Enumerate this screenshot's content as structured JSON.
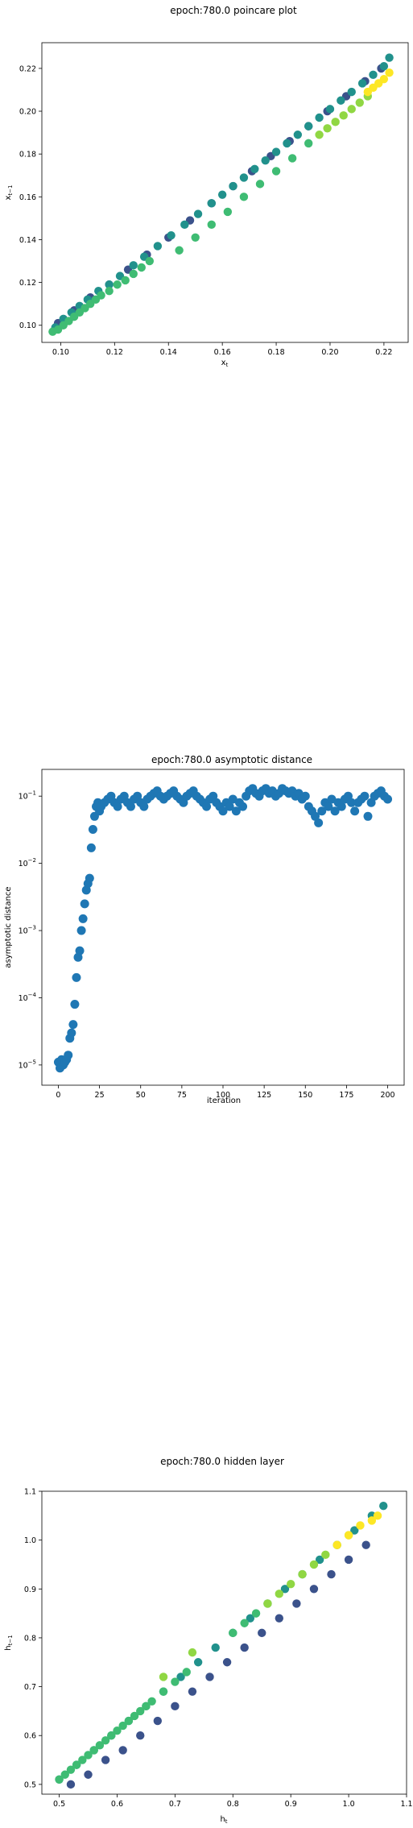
{
  "charts": {
    "poincare": {
      "title": "epoch:780.0 poincare plot",
      "xlabel": "x",
      "xsub": "t",
      "ylabel": "x",
      "ysub": "t−1"
    },
    "distance": {
      "title": "epoch:780.0 asymptotic distance",
      "xlabel": "iteration",
      "ylabel": "asymptotic distance"
    },
    "hidden": {
      "title": "epoch:780.0 hidden layer",
      "xlabel": "h",
      "xsub": "t",
      "ylabel": "h",
      "ysub": "t−1"
    }
  },
  "chart_data": [
    {
      "type": "scatter",
      "title": "epoch:780.0 poincare plot",
      "xlabel": "x_t",
      "ylabel": "x_{t-1}",
      "xlim": [
        0.093,
        0.229
      ],
      "ylim": [
        0.092,
        0.232
      ],
      "xticks": [
        0.1,
        0.12,
        0.14,
        0.16,
        0.18,
        0.2,
        0.22
      ],
      "yticks": [
        0.1,
        0.12,
        0.14,
        0.16,
        0.18,
        0.2,
        0.22
      ],
      "tick_labels_x": [
        "0.10",
        "0.12",
        "0.14",
        "0.16",
        "0.18",
        "0.20",
        "0.22"
      ],
      "tick_labels_y": [
        "0.10",
        "0.12",
        "0.14",
        "0.16",
        "0.18",
        "0.20",
        "0.22"
      ],
      "colormap": [
        "#440154",
        "#3b528b",
        "#21918c",
        "#5ec962",
        "#fde725"
      ],
      "series": [
        {
          "color": "#3b528b",
          "x": [
            0.099,
            0.105,
            0.111,
            0.118,
            0.125,
            0.132,
            0.14,
            0.148,
            0.156,
            0.164,
            0.171,
            0.178,
            0.185,
            0.192,
            0.199,
            0.206,
            0.213,
            0.219
          ],
          "y": [
            0.101,
            0.107,
            0.113,
            0.119,
            0.126,
            0.133,
            0.141,
            0.149,
            0.157,
            0.165,
            0.172,
            0.179,
            0.186,
            0.193,
            0.2,
            0.207,
            0.214,
            0.22
          ]
        },
        {
          "color": "#21918c",
          "x": [
            0.098,
            0.101,
            0.104,
            0.107,
            0.11,
            0.114,
            0.118,
            0.122,
            0.127,
            0.131,
            0.136,
            0.141,
            0.146,
            0.151,
            0.156,
            0.16,
            0.164,
            0.168,
            0.172,
            0.176,
            0.18,
            0.184,
            0.188,
            0.192,
            0.196,
            0.2,
            0.204,
            0.208,
            0.212,
            0.216,
            0.22,
            0.222
          ],
          "y": [
            0.099,
            0.103,
            0.106,
            0.109,
            0.112,
            0.116,
            0.119,
            0.123,
            0.128,
            0.132,
            0.137,
            0.142,
            0.147,
            0.152,
            0.157,
            0.161,
            0.165,
            0.169,
            0.173,
            0.177,
            0.181,
            0.185,
            0.189,
            0.193,
            0.197,
            0.201,
            0.205,
            0.209,
            0.213,
            0.217,
            0.221,
            0.225
          ]
        },
        {
          "color": "#3fbc73",
          "x": [
            0.097,
            0.099,
            0.101,
            0.103,
            0.105,
            0.107,
            0.109,
            0.111,
            0.113,
            0.115,
            0.118,
            0.121,
            0.124,
            0.127,
            0.13,
            0.133,
            0.144,
            0.15,
            0.156,
            0.162,
            0.168,
            0.174,
            0.18,
            0.186,
            0.192
          ],
          "y": [
            0.097,
            0.098,
            0.1,
            0.102,
            0.104,
            0.106,
            0.108,
            0.11,
            0.112,
            0.114,
            0.116,
            0.119,
            0.121,
            0.124,
            0.127,
            0.13,
            0.135,
            0.141,
            0.147,
            0.153,
            0.16,
            0.166,
            0.172,
            0.178,
            0.185
          ]
        },
        {
          "color": "#90d743",
          "x": [
            0.196,
            0.199,
            0.202,
            0.205,
            0.208,
            0.211,
            0.214
          ],
          "y": [
            0.189,
            0.192,
            0.195,
            0.198,
            0.201,
            0.204,
            0.207
          ]
        },
        {
          "color": "#fde725",
          "x": [
            0.214,
            0.216,
            0.218,
            0.22,
            0.222
          ],
          "y": [
            0.209,
            0.211,
            0.213,
            0.215,
            0.218
          ]
        }
      ]
    },
    {
      "type": "scatter",
      "title": "epoch:780.0 asymptotic distance",
      "xlabel": "iteration",
      "ylabel": "asymptotic distance",
      "yscale": "log",
      "xlim": [
        -10,
        210
      ],
      "ylim": [
        5e-06,
        0.25
      ],
      "xticks": [
        0,
        25,
        50,
        75,
        100,
        125,
        150,
        175,
        200
      ],
      "tick_labels_x": [
        "0",
        "25",
        "50",
        "75",
        "100",
        "125",
        "150",
        "175",
        "200"
      ],
      "yticks": [
        1e-05,
        0.0001,
        0.001,
        0.01,
        0.1
      ],
      "tick_labels_y": [
        {
          "base": "10",
          "exp": "−5"
        },
        {
          "base": "10",
          "exp": "−4"
        },
        {
          "base": "10",
          "exp": "−3"
        },
        {
          "base": "10",
          "exp": "−2"
        },
        {
          "base": "10",
          "exp": "−1"
        }
      ],
      "color": "#1f77b4",
      "x": [
        0,
        1,
        2,
        3,
        4,
        5,
        6,
        7,
        8,
        9,
        10,
        11,
        12,
        13,
        14,
        15,
        16,
        17,
        18,
        19,
        20,
        21,
        22,
        23,
        24,
        25,
        26,
        28,
        30,
        32,
        34,
        36,
        38,
        40,
        42,
        44,
        46,
        48,
        50,
        52,
        54,
        56,
        58,
        60,
        62,
        64,
        66,
        68,
        70,
        72,
        74,
        76,
        78,
        80,
        82,
        84,
        86,
        88,
        90,
        92,
        94,
        96,
        98,
        100,
        102,
        104,
        106,
        108,
        110,
        112,
        114,
        116,
        118,
        120,
        122,
        124,
        126,
        128,
        130,
        132,
        134,
        136,
        138,
        140,
        142,
        144,
        146,
        148,
        150,
        152,
        154,
        156,
        158,
        160,
        162,
        164,
        166,
        168,
        170,
        172,
        174,
        176,
        178,
        180,
        182,
        184,
        186,
        188,
        190,
        192,
        194,
        196,
        198,
        200
      ],
      "y": [
        1.1e-05,
        9e-06,
        1.2e-05,
        1e-05,
        1.1e-05,
        1.2e-05,
        1.4e-05,
        2.5e-05,
        3e-05,
        4e-05,
        8e-05,
        0.0002,
        0.0004,
        0.0005,
        0.001,
        0.0015,
        0.0025,
        0.004,
        0.005,
        0.006,
        0.017,
        0.032,
        0.05,
        0.07,
        0.08,
        0.06,
        0.07,
        0.08,
        0.09,
        0.1,
        0.08,
        0.07,
        0.09,
        0.1,
        0.08,
        0.07,
        0.09,
        0.1,
        0.08,
        0.07,
        0.09,
        0.1,
        0.11,
        0.12,
        0.1,
        0.09,
        0.1,
        0.11,
        0.12,
        0.1,
        0.09,
        0.08,
        0.1,
        0.11,
        0.12,
        0.1,
        0.09,
        0.08,
        0.07,
        0.09,
        0.1,
        0.08,
        0.07,
        0.06,
        0.08,
        0.07,
        0.09,
        0.06,
        0.08,
        0.07,
        0.1,
        0.12,
        0.13,
        0.11,
        0.1,
        0.12,
        0.13,
        0.11,
        0.12,
        0.1,
        0.11,
        0.13,
        0.12,
        0.11,
        0.12,
        0.1,
        0.11,
        0.09,
        0.1,
        0.07,
        0.06,
        0.05,
        0.04,
        0.06,
        0.08,
        0.07,
        0.09,
        0.06,
        0.08,
        0.07,
        0.09,
        0.1,
        0.08,
        0.06,
        0.08,
        0.09,
        0.1,
        0.05,
        0.08,
        0.1,
        0.11,
        0.12,
        0.1,
        0.09
      ]
    },
    {
      "type": "scatter",
      "title": "epoch:780.0 hidden layer",
      "xlabel": "h_t",
      "ylabel": "h_{t-1}",
      "xlim": [
        0.47,
        1.1
      ],
      "ylim": [
        0.48,
        1.1
      ],
      "xticks": [
        0.5,
        0.6,
        0.7,
        0.8,
        0.9,
        1.0,
        1.1
      ],
      "tick_labels_x": [
        "0.5",
        "0.6",
        "0.7",
        "0.8",
        "0.9",
        "1.0",
        "1.1"
      ],
      "yticks": [
        0.5,
        0.6,
        0.7,
        0.8,
        0.9,
        1.0,
        1.1
      ],
      "tick_labels_y": [
        "0.5",
        "0.6",
        "0.7",
        "0.8",
        "0.9",
        "1.0",
        "1.1"
      ],
      "colormap": [
        "#440154",
        "#3b528b",
        "#21918c",
        "#5ec962",
        "#fde725"
      ],
      "series": [
        {
          "color": "#3b528b",
          "x": [
            0.52,
            0.55,
            0.58,
            0.61,
            0.64,
            0.67,
            0.7,
            0.73,
            0.76,
            0.79,
            0.82,
            0.85,
            0.88,
            0.91,
            0.94,
            0.97,
            1.0,
            1.03
          ],
          "y": [
            0.5,
            0.52,
            0.55,
            0.57,
            0.6,
            0.63,
            0.66,
            0.69,
            0.72,
            0.75,
            0.78,
            0.81,
            0.84,
            0.87,
            0.9,
            0.93,
            0.96,
            0.99
          ]
        },
        {
          "color": "#21918c",
          "x": [
            0.5,
            0.53,
            0.56,
            0.59,
            0.62,
            0.65,
            0.68,
            0.71,
            0.74,
            0.77,
            0.8,
            0.83,
            0.86,
            0.89,
            0.92,
            0.95,
            0.98,
            1.01,
            1.04,
            1.06
          ],
          "y": [
            0.51,
            0.54,
            0.57,
            0.6,
            0.63,
            0.66,
            0.69,
            0.72,
            0.75,
            0.78,
            0.81,
            0.84,
            0.87,
            0.9,
            0.93,
            0.96,
            0.99,
            1.02,
            1.05,
            1.07
          ]
        },
        {
          "color": "#3fbc73",
          "x": [
            0.5,
            0.51,
            0.52,
            0.53,
            0.54,
            0.55,
            0.56,
            0.57,
            0.58,
            0.59,
            0.6,
            0.61,
            0.62,
            0.63,
            0.64,
            0.65,
            0.66,
            0.68,
            0.7,
            0.72,
            0.8,
            0.82,
            0.84
          ],
          "y": [
            0.51,
            0.52,
            0.53,
            0.54,
            0.55,
            0.56,
            0.57,
            0.58,
            0.59,
            0.6,
            0.61,
            0.62,
            0.63,
            0.64,
            0.65,
            0.66,
            0.67,
            0.69,
            0.71,
            0.73,
            0.81,
            0.83,
            0.85
          ]
        },
        {
          "color": "#90d743",
          "x": [
            0.68,
            0.73,
            0.86,
            0.88,
            0.9,
            0.92,
            0.94,
            0.96,
            0.98,
            1.0
          ],
          "y": [
            0.72,
            0.77,
            0.87,
            0.89,
            0.91,
            0.93,
            0.95,
            0.97,
            0.99,
            1.01
          ]
        },
        {
          "color": "#fde725",
          "x": [
            0.98,
            1.0,
            1.02,
            1.04,
            1.05
          ],
          "y": [
            0.99,
            1.01,
            1.03,
            1.04,
            1.05
          ]
        }
      ]
    }
  ]
}
